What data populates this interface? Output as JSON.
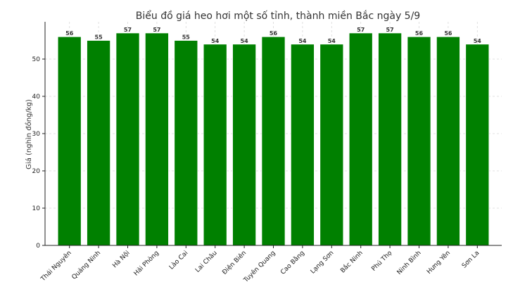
{
  "chart_data": {
    "type": "bar",
    "title": "Biểu đồ giá heo hơi một số tỉnh, thành miền Bắc ngày 5/9",
    "xlabel": "",
    "ylabel": "Giá (nghìn đồng/kg)",
    "categories": [
      "Thái Nguyên",
      "Quảng Ninh",
      "Hà Nội",
      "Hải Phòng",
      "Lào Cai",
      "Lai Châu",
      "Điện Biên",
      "Tuyên Quang",
      "Cao Bằng",
      "Lạng Sơn",
      "Bắc Ninh",
      "Phú Thọ",
      "Ninh Bình",
      "Hưng Yên",
      "Sơn La"
    ],
    "values": [
      56,
      55,
      57,
      57,
      55,
      54,
      54,
      56,
      54,
      54,
      57,
      57,
      56,
      56,
      54
    ],
    "ylim": [
      0,
      60
    ],
    "yticks": [
      0,
      10,
      20,
      30,
      40,
      50
    ],
    "grid": true,
    "bar_color": "#008000",
    "bar_edge_color": "#ffffff"
  }
}
